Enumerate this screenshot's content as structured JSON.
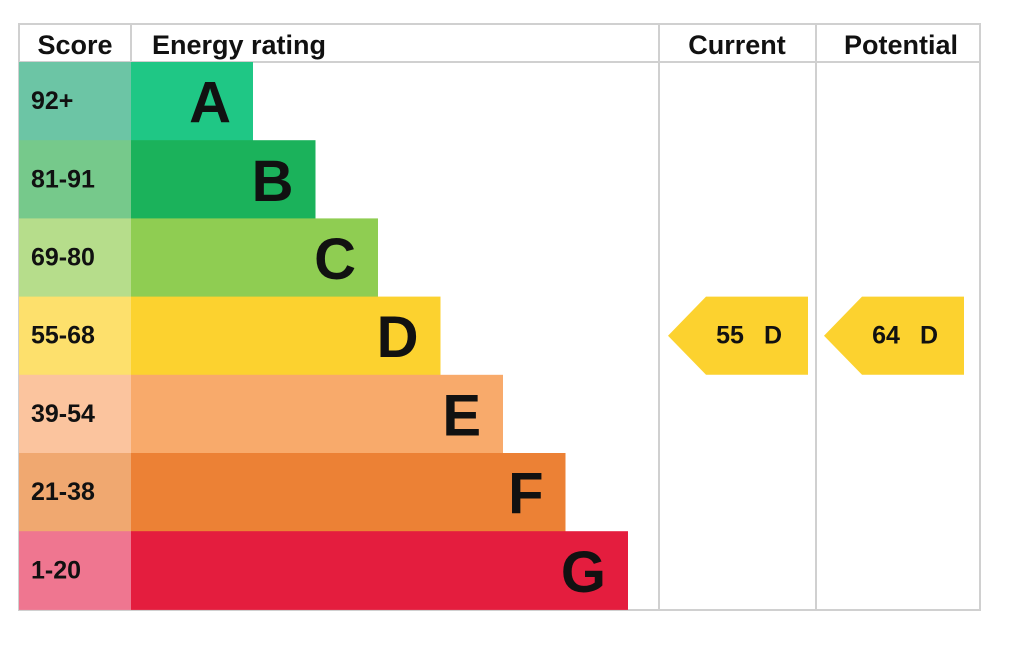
{
  "header": {
    "score": "Score",
    "rating": "Energy rating",
    "current": "Current",
    "potential": "Potential"
  },
  "rows": [
    {
      "score": "92+",
      "band": "A"
    },
    {
      "score": "81-91",
      "band": "B"
    },
    {
      "score": "69-80",
      "band": "C"
    },
    {
      "score": "55-68",
      "band": "D"
    },
    {
      "score": "39-54",
      "band": "E"
    },
    {
      "score": "21-38",
      "band": "F"
    },
    {
      "score": "1-20",
      "band": "G"
    }
  ],
  "current": {
    "value": 55,
    "band": "D"
  },
  "potential": {
    "value": 64,
    "band": "D"
  }
}
